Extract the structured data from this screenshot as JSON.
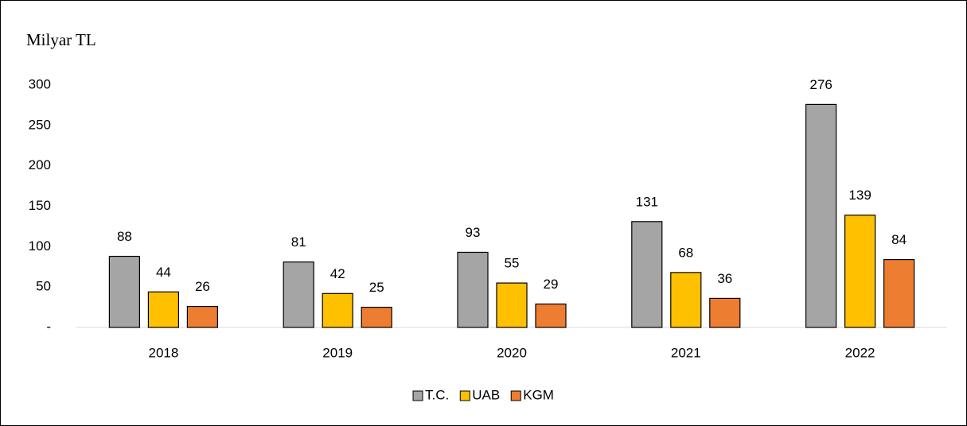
{
  "chart_data": {
    "type": "bar",
    "title": "Milyar TL",
    "categories": [
      "2018",
      "2019",
      "2020",
      "2021",
      "2022"
    ],
    "series": [
      {
        "name": "T.C.",
        "color": "#a5a5a5",
        "values": [
          88,
          81,
          93,
          131,
          276
        ]
      },
      {
        "name": "UAB",
        "color": "#ffc000",
        "values": [
          44,
          42,
          55,
          68,
          139
        ]
      },
      {
        "name": "KGM",
        "color": "#ed7d31",
        "values": [
          26,
          25,
          29,
          36,
          84
        ]
      }
    ],
    "ylim": [
      0,
      300
    ],
    "yticks": [
      {
        "value": 0,
        "label": "-"
      },
      50,
      100,
      150,
      200,
      250,
      300
    ],
    "grid": false,
    "legend": "bottom"
  }
}
